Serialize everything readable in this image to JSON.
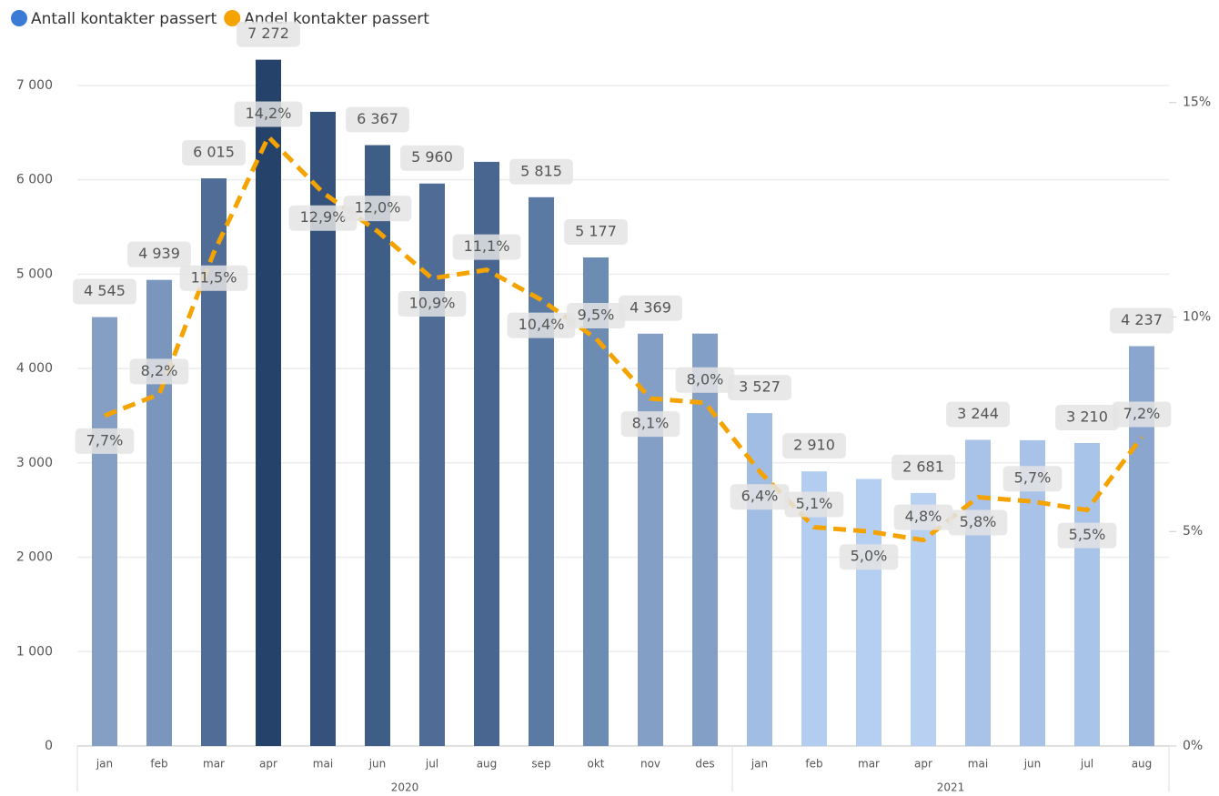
{
  "chart_data": {
    "type": "combo",
    "categories": [
      "jan",
      "feb",
      "mar",
      "apr",
      "mai",
      "jun",
      "jul",
      "aug",
      "sep",
      "okt",
      "nov",
      "des",
      "jan",
      "feb",
      "mar",
      "apr",
      "mai",
      "jun",
      "jul",
      "aug"
    ],
    "year_groups": [
      {
        "label": "2020",
        "count": 12
      },
      {
        "label": "2021",
        "count": 8
      }
    ],
    "series": [
      {
        "name": "Antall kontakter passert",
        "type": "bar",
        "color": "#3a7bd5",
        "values": [
          4545,
          4939,
          6015,
          7272,
          6720,
          6367,
          5960,
          6190,
          5815,
          5177,
          4369,
          4370,
          3527,
          2910,
          2830,
          2681,
          3244,
          3240,
          3210,
          4237
        ],
        "value_labels": [
          "4 545",
          "4 939",
          "6 015",
          "7 272",
          null,
          "6 367",
          "5 960",
          null,
          "5 815",
          "5 177",
          "4 369",
          null,
          "3 527",
          "2 910",
          null,
          "2 681",
          "3 244",
          null,
          "3 210",
          "4 237"
        ],
        "colors": [
          "#859fc4",
          "#7b96bd",
          "#4f6d96",
          "#24426a",
          "#34527c",
          "#3e5d87",
          "#4e6c96",
          "#486690",
          "#5a7aa3",
          "#6d8cb4",
          "#849fc6",
          "#849fc6",
          "#a2bde3",
          "#b3cdf0",
          "#b5cff2",
          "#b8d1f3",
          "#a9c3e8",
          "#a9c3e8",
          "#a9c4e9",
          "#8aa6cf"
        ]
      },
      {
        "name": "Andel kontakter passert",
        "type": "line",
        "axis": "y2",
        "color": "#f5a300",
        "values": [
          7.7,
          8.2,
          11.5,
          14.2,
          12.9,
          12.0,
          10.9,
          11.1,
          10.4,
          9.5,
          8.1,
          8.0,
          6.4,
          5.1,
          5.0,
          4.8,
          5.8,
          5.7,
          5.5,
          7.2
        ],
        "value_labels": [
          "7,7%",
          "8,2%",
          "11,5%",
          "14,2%",
          "12,9%",
          "12,0%",
          "10,9%",
          "11,1%",
          "10,4%",
          "9,5%",
          "8,1%",
          "8,0%",
          "6,4%",
          "5,1%",
          "5,0%",
          "4,8%",
          "5,8%",
          "5,7%",
          "5,5%",
          "7,2%"
        ]
      }
    ],
    "ylim": [
      0,
      7500
    ],
    "yticks": [
      0,
      {
        "value": 1000,
        "label": "1 000"
      },
      {
        "value": 2000,
        "label": "2 000"
      },
      {
        "value": 3000,
        "label": "3 000"
      },
      {
        "value": 4000,
        "label": "4 000"
      },
      {
        "value": 5000,
        "label": "5 000"
      },
      {
        "value": 6000,
        "label": "6 000"
      },
      {
        "value": 7000,
        "label": "7 000"
      }
    ],
    "y2lim": [
      0,
      16.5
    ],
    "y2ticks": [
      {
        "value": 0,
        "label": "0%"
      },
      {
        "value": 5,
        "label": "5%"
      },
      {
        "value": 10,
        "label": "10%"
      },
      {
        "value": 15,
        "label": "15%"
      }
    ],
    "grid": true,
    "legend": "top-left"
  }
}
